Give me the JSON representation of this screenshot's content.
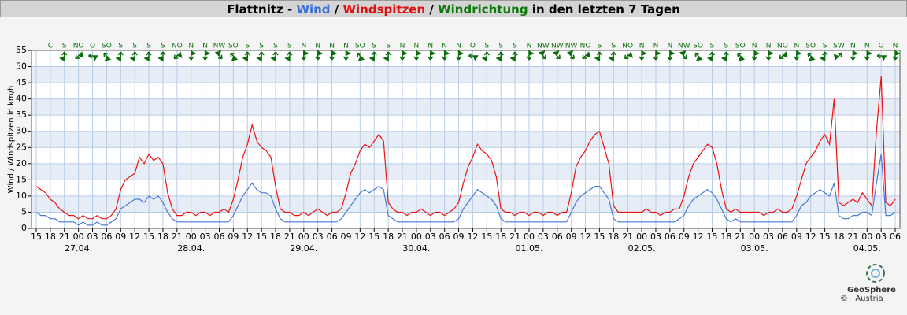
{
  "chart_data": {
    "type": "line",
    "title_parts": [
      {
        "text": "Flattnitz - ",
        "color": "#000000"
      },
      {
        "text": "Wind",
        "color": "#3a6fd8"
      },
      {
        "text": " / ",
        "color": "#000000"
      },
      {
        "text": "Windspitzen",
        "color": "#e01010"
      },
      {
        "text": " / ",
        "color": "#000000"
      },
      {
        "text": "Windrichtung",
        "color": "#0a7a0a"
      },
      {
        "text": " in den letzten 7 Tagen",
        "color": "#000000"
      }
    ],
    "y_label": "Wind / Windspitzen in km/h",
    "ylim": [
      0,
      55
    ],
    "yticks": [
      0,
      5,
      10,
      15,
      20,
      25,
      30,
      35,
      40,
      45,
      50,
      55
    ],
    "xlim": [
      -1,
      184
    ],
    "xticks": [
      {
        "value": 0,
        "label": "15"
      },
      {
        "value": 3,
        "label": "18"
      },
      {
        "value": 6,
        "label": "21"
      },
      {
        "value": 9,
        "label": "00"
      },
      {
        "value": 12,
        "label": "03"
      },
      {
        "value": 15,
        "label": "06"
      },
      {
        "value": 18,
        "label": "09"
      },
      {
        "value": 21,
        "label": "12"
      },
      {
        "value": 24,
        "label": "15"
      },
      {
        "value": 27,
        "label": "18"
      },
      {
        "value": 30,
        "label": "21"
      },
      {
        "value": 33,
        "label": "00"
      },
      {
        "value": 36,
        "label": "03"
      },
      {
        "value": 39,
        "label": "06"
      },
      {
        "value": 42,
        "label": "09"
      },
      {
        "value": 45,
        "label": "12"
      },
      {
        "value": 48,
        "label": "15"
      },
      {
        "value": 51,
        "label": "18"
      },
      {
        "value": 54,
        "label": "21"
      },
      {
        "value": 57,
        "label": "00"
      },
      {
        "value": 60,
        "label": "03"
      },
      {
        "value": 63,
        "label": "06"
      },
      {
        "value": 66,
        "label": "09"
      },
      {
        "value": 69,
        "label": "12"
      },
      {
        "value": 72,
        "label": "15"
      },
      {
        "value": 75,
        "label": "18"
      },
      {
        "value": 78,
        "label": "21"
      },
      {
        "value": 81,
        "label": "00"
      },
      {
        "value": 84,
        "label": "03"
      },
      {
        "value": 87,
        "label": "06"
      },
      {
        "value": 90,
        "label": "09"
      },
      {
        "value": 93,
        "label": "12"
      },
      {
        "value": 96,
        "label": "15"
      },
      {
        "value": 99,
        "label": "18"
      },
      {
        "value": 102,
        "label": "21"
      },
      {
        "value": 105,
        "label": "00"
      },
      {
        "value": 108,
        "label": "03"
      },
      {
        "value": 111,
        "label": "06"
      },
      {
        "value": 114,
        "label": "09"
      },
      {
        "value": 117,
        "label": "12"
      },
      {
        "value": 120,
        "label": "15"
      },
      {
        "value": 123,
        "label": "18"
      },
      {
        "value": 126,
        "label": "21"
      },
      {
        "value": 129,
        "label": "00"
      },
      {
        "value": 132,
        "label": "03"
      },
      {
        "value": 135,
        "label": "06"
      },
      {
        "value": 138,
        "label": "09"
      },
      {
        "value": 141,
        "label": "12"
      },
      {
        "value": 144,
        "label": "15"
      },
      {
        "value": 147,
        "label": "18"
      },
      {
        "value": 150,
        "label": "21"
      },
      {
        "value": 153,
        "label": "00"
      },
      {
        "value": 156,
        "label": "03"
      },
      {
        "value": 159,
        "label": "06"
      },
      {
        "value": 162,
        "label": "09"
      },
      {
        "value": 165,
        "label": "12"
      },
      {
        "value": 168,
        "label": "15"
      },
      {
        "value": 171,
        "label": "18"
      },
      {
        "value": 174,
        "label": "21"
      },
      {
        "value": 177,
        "label": "00"
      },
      {
        "value": 180,
        "label": "03"
      },
      {
        "value": 183,
        "label": "06"
      }
    ],
    "date_labels": [
      {
        "value": 9,
        "label": "27.04."
      },
      {
        "value": 33,
        "label": "28.04."
      },
      {
        "value": 57,
        "label": "29.04."
      },
      {
        "value": 81,
        "label": "30.04."
      },
      {
        "value": 105,
        "label": "01.05."
      },
      {
        "value": 129,
        "label": "02.05."
      },
      {
        "value": 153,
        "label": "03.05."
      },
      {
        "value": 177,
        "label": "04.05."
      }
    ],
    "x": [
      0,
      1,
      2,
      3,
      4,
      5,
      6,
      7,
      8,
      9,
      10,
      11,
      12,
      13,
      14,
      15,
      16,
      17,
      18,
      19,
      20,
      21,
      22,
      23,
      24,
      25,
      26,
      27,
      28,
      29,
      30,
      31,
      32,
      33,
      34,
      35,
      36,
      37,
      38,
      39,
      40,
      41,
      42,
      43,
      44,
      45,
      46,
      47,
      48,
      49,
      50,
      51,
      52,
      53,
      54,
      55,
      56,
      57,
      58,
      59,
      60,
      61,
      62,
      63,
      64,
      65,
      66,
      67,
      68,
      69,
      70,
      71,
      72,
      73,
      74,
      75,
      76,
      77,
      78,
      79,
      80,
      81,
      82,
      83,
      84,
      85,
      86,
      87,
      88,
      89,
      90,
      91,
      92,
      93,
      94,
      95,
      96,
      97,
      98,
      99,
      100,
      101,
      102,
      103,
      104,
      105,
      106,
      107,
      108,
      109,
      110,
      111,
      112,
      113,
      114,
      115,
      116,
      117,
      118,
      119,
      120,
      121,
      122,
      123,
      124,
      125,
      126,
      127,
      128,
      129,
      130,
      131,
      132,
      133,
      134,
      135,
      136,
      137,
      138,
      139,
      140,
      141,
      142,
      143,
      144,
      145,
      146,
      147,
      148,
      149,
      150,
      151,
      152,
      153,
      154,
      155,
      156,
      157,
      158,
      159,
      160,
      161,
      162,
      163,
      164,
      165,
      166,
      167,
      168,
      169,
      170,
      171,
      172,
      173,
      174,
      175,
      176,
      177,
      178,
      179,
      180,
      181,
      182,
      183
    ],
    "series": [
      {
        "name": "Windspitzen",
        "color": "#ee1111",
        "values": [
          13,
          12,
          11,
          9,
          8,
          6,
          5,
          4,
          4,
          3,
          4,
          3,
          3,
          4,
          3,
          3,
          4,
          6,
          12,
          15,
          16,
          17,
          22,
          20,
          23,
          21,
          22,
          20,
          11,
          6,
          4,
          4,
          5,
          5,
          4,
          5,
          5,
          4,
          5,
          5,
          6,
          5,
          9,
          15,
          22,
          26,
          32,
          27,
          25,
          24,
          22,
          13,
          6,
          5,
          5,
          4,
          4,
          5,
          4,
          5,
          6,
          5,
          4,
          5,
          5,
          6,
          11,
          17,
          20,
          24,
          26,
          25,
          27,
          29,
          27,
          8,
          6,
          5,
          5,
          4,
          5,
          5,
          6,
          5,
          4,
          5,
          5,
          4,
          5,
          6,
          8,
          14,
          19,
          22,
          26,
          24,
          23,
          21,
          16,
          6,
          5,
          5,
          4,
          5,
          5,
          4,
          5,
          5,
          4,
          5,
          5,
          4,
          5,
          5,
          11,
          19,
          22,
          24,
          27,
          29,
          30,
          25,
          20,
          7,
          5,
          5,
          5,
          5,
          5,
          5,
          6,
          5,
          5,
          4,
          5,
          5,
          6,
          6,
          10,
          16,
          20,
          22,
          24,
          26,
          25,
          20,
          12,
          6,
          5,
          6,
          5,
          5,
          5,
          5,
          5,
          4,
          5,
          5,
          6,
          5,
          5,
          6,
          10,
          15,
          20,
          22,
          24,
          27,
          29,
          26,
          40,
          8,
          7,
          8,
          9,
          8,
          11,
          9,
          7,
          30,
          47,
          8,
          7,
          9
        ]
      },
      {
        "name": "Wind",
        "color": "#4a78d8",
        "values": [
          5,
          4,
          4,
          3,
          3,
          2,
          2,
          2,
          2,
          1,
          2,
          1,
          1,
          2,
          1,
          1,
          2,
          3,
          6,
          7,
          8,
          9,
          9,
          8,
          10,
          9,
          10,
          8,
          5,
          3,
          2,
          2,
          2,
          2,
          2,
          2,
          2,
          2,
          2,
          2,
          2,
          2,
          4,
          7,
          10,
          12,
          14,
          12,
          11,
          11,
          10,
          6,
          3,
          2,
          2,
          2,
          2,
          2,
          2,
          2,
          2,
          2,
          2,
          2,
          2,
          3,
          5,
          7,
          9,
          11,
          12,
          11,
          12,
          13,
          12,
          4,
          3,
          2,
          2,
          2,
          2,
          2,
          2,
          2,
          2,
          2,
          2,
          2,
          2,
          2,
          3,
          6,
          8,
          10,
          12,
          11,
          10,
          9,
          7,
          3,
          2,
          2,
          2,
          2,
          2,
          2,
          2,
          2,
          2,
          2,
          2,
          2,
          2,
          2,
          5,
          8,
          10,
          11,
          12,
          13,
          13,
          11,
          9,
          3,
          2,
          2,
          2,
          2,
          2,
          2,
          2,
          2,
          2,
          2,
          2,
          2,
          2,
          3,
          4,
          7,
          9,
          10,
          11,
          12,
          11,
          9,
          6,
          3,
          2,
          3,
          2,
          2,
          2,
          2,
          2,
          2,
          2,
          2,
          2,
          2,
          2,
          2,
          4,
          7,
          8,
          10,
          11,
          12,
          11,
          10,
          14,
          4,
          3,
          3,
          4,
          4,
          5,
          5,
          4,
          14,
          23,
          4,
          4,
          5
        ]
      }
    ],
    "directions": {
      "color": "#0a6e0a",
      "x": [
        3,
        6,
        9,
        12,
        15,
        18,
        21,
        24,
        27,
        30,
        33,
        36,
        39,
        42,
        45,
        48,
        51,
        54,
        57,
        60,
        63,
        66,
        69,
        72,
        75,
        78,
        81,
        84,
        87,
        90,
        93,
        96,
        99,
        102,
        105,
        108,
        111,
        114,
        117,
        120,
        123,
        126,
        129,
        132,
        135,
        138,
        141,
        144,
        147,
        150,
        153,
        156,
        159,
        162,
        165,
        168,
        171,
        174,
        177,
        180,
        183
      ],
      "labels": [
        "C",
        "S",
        "NO",
        "O",
        "SO",
        "S",
        "S",
        "S",
        "S",
        "NO",
        "N",
        "N",
        "NW",
        "SO",
        "S",
        "S",
        "S",
        "S",
        "N",
        "N",
        "N",
        "N",
        "SO",
        "S",
        "S",
        "N",
        "N",
        "N",
        "N",
        "N",
        "O",
        "S",
        "S",
        "S",
        "N",
        "NW",
        "NW",
        "NW",
        "NO",
        "S",
        "S",
        "NO",
        "N",
        "N",
        "N",
        "NW",
        "SO",
        "S",
        "S",
        "SO",
        "N",
        "N",
        "NO",
        "N",
        "SO",
        "S",
        "SW",
        "N",
        "N",
        "O",
        "N"
      ]
    },
    "logo": {
      "copyright": "©",
      "name": "GeoSphere",
      "country": "Austria"
    }
  }
}
